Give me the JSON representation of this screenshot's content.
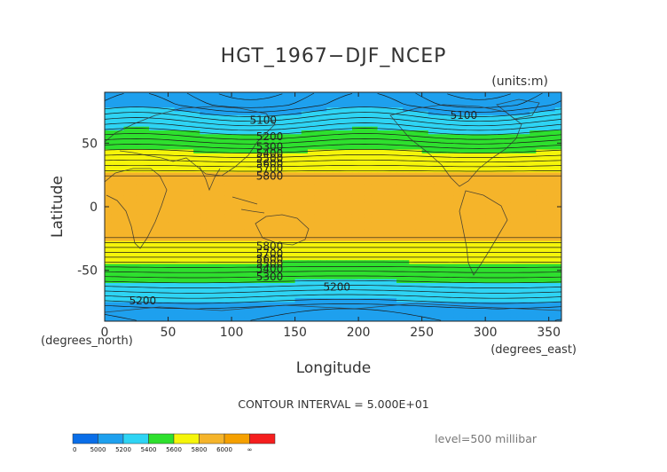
{
  "chart_data": {
    "type": "heatmap",
    "title": "HGT_1967−DJF_NCEP",
    "units_label": "(units:m)",
    "xlabel": "Longitude",
    "ylabel": "Latitude",
    "x_unit_label": "(degrees_east)",
    "y_unit_label": "(degrees_north)",
    "xlim": [
      0,
      360
    ],
    "ylim": [
      -90,
      90
    ],
    "xticks": [
      0,
      50,
      100,
      150,
      200,
      250,
      300,
      350
    ],
    "yticks": [
      -50,
      0,
      50
    ],
    "contour_interval_text": "CONTOUR INTERVAL = 5.000E+01",
    "level_text": "level=500 millibar",
    "colorbar": {
      "tick_labels": [
        "0",
        "5000",
        "5200",
        "5400",
        "5600",
        "5800",
        "6000",
        "∞"
      ],
      "bounds": [
        0,
        5000,
        5200,
        5400,
        5600,
        5800,
        6000,
        7000
      ],
      "colors": [
        "#0a6ee8",
        "#1ea0ee",
        "#2ed4f4",
        "#2ee02e",
        "#f5f50a",
        "#f5b42a",
        "#f5a000",
        "#f51e1e"
      ]
    },
    "contour_labels": [
      {
        "text": "5100",
        "lon": 125,
        "lat": 68
      },
      {
        "text": "5100",
        "lon": 283,
        "lat": 72
      },
      {
        "text": "5200",
        "lon": 130,
        "lat": 55
      },
      {
        "text": "5300",
        "lon": 130,
        "lat": 47
      },
      {
        "text": "5400",
        "lon": 130,
        "lat": 42
      },
      {
        "text": "5500",
        "lon": 130,
        "lat": 38
      },
      {
        "text": "5600",
        "lon": 130,
        "lat": 34
      },
      {
        "text": "5700",
        "lon": 130,
        "lat": 30
      },
      {
        "text": "5800",
        "lon": 130,
        "lat": 24
      },
      {
        "text": "5800",
        "lon": 130,
        "lat": -31
      },
      {
        "text": "5700",
        "lon": 130,
        "lat": -37
      },
      {
        "text": "5600",
        "lon": 130,
        "lat": -41
      },
      {
        "text": "5500",
        "lon": 130,
        "lat": -45
      },
      {
        "text": "5400",
        "lon": 130,
        "lat": -49
      },
      {
        "text": "5300",
        "lon": 130,
        "lat": -55
      },
      {
        "text": "5200",
        "lon": 183,
        "lat": -63
      },
      {
        "text": "5200",
        "lon": 30,
        "lat": -74
      }
    ]
  }
}
